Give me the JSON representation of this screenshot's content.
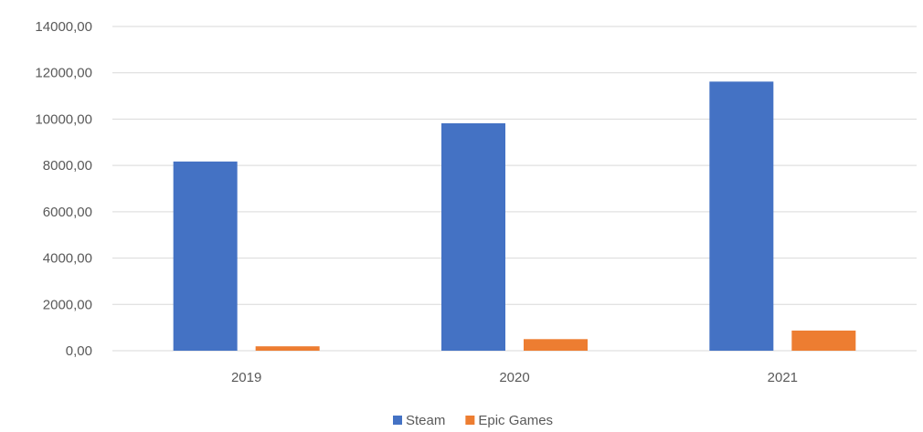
{
  "chart_data": {
    "type": "bar",
    "title": "",
    "xlabel": "",
    "ylabel": "",
    "categories": [
      "2019",
      "2020",
      "2021"
    ],
    "series": [
      {
        "name": "Steam",
        "color": "#4472c4",
        "values": [
          8170,
          9820,
          11620
        ]
      },
      {
        "name": "Epic Games",
        "color": "#ed7d31",
        "values": [
          190,
          500,
          870
        ]
      }
    ],
    "ylim": [
      0,
      14000
    ],
    "ytick_step": 2000,
    "ytick_labels": [
      "0,00",
      "2000,00",
      "4000,00",
      "6000,00",
      "8000,00",
      "10000,00",
      "12000,00",
      "14000,00"
    ],
    "grid": true,
    "legend_position": "bottom"
  }
}
